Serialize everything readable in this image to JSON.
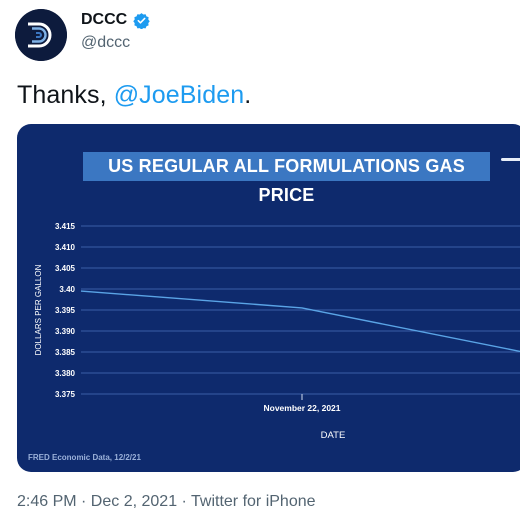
{
  "account": {
    "name": "DCCC",
    "handle": "@dccc"
  },
  "tweet": {
    "text_prefix": "Thanks, ",
    "mention": "@JoeBiden",
    "text_suffix": "."
  },
  "meta": {
    "line": "2:46 PM · Dec 2, 2021 · Twitter for iPhone"
  },
  "colors": {
    "mention": "#1d9bf0",
    "chart_bg": "#0e2a6d",
    "title_bg": "#3b77c2",
    "line": "#5aa4e6"
  },
  "chart_data": {
    "type": "line",
    "title": "US REGULAR ALL FORMULATIONS GAS PRICE",
    "xlabel": "DATE",
    "ylabel": "DOLLARS PER GALLON",
    "yticks": [
      "3.415",
      "3.410",
      "3.405",
      "3.40",
      "3.395",
      "3.390",
      "3.385",
      "3.380",
      "3.375"
    ],
    "ylim": [
      3.375,
      3.415
    ],
    "xtick_label": "November 22, 2021",
    "series": [
      {
        "points": [
          {
            "x": "2021-11-15",
            "y": 3.3995
          },
          {
            "x": "2021-11-22",
            "y": 3.3955
          },
          {
            "x": "2021-11-29",
            "y": 3.385
          }
        ]
      }
    ],
    "grid": true,
    "source": "FRED Economic Data, 12/2/21"
  }
}
